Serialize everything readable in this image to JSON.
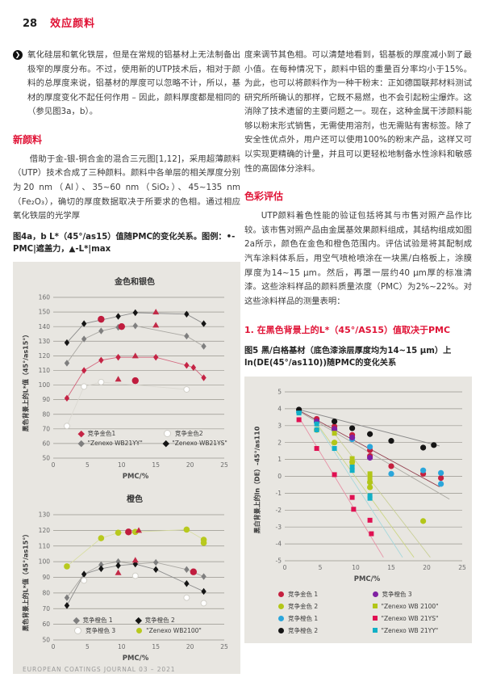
{
  "page": {
    "number": "28",
    "section_title": "效应颜料",
    "footer": "EUROPEAN COATINGS JOURNAL 03 – 2021"
  },
  "colors": {
    "accent_red": "#e01336",
    "chart_box_bg": "#e8e6e1",
    "gridline": "#98958e"
  },
  "left_column": {
    "intro_paragraph": "氧化硅层和氧化铁层，但是在常规的铝基材上无法制备出极窄的厚度分布。不过，使用新的UTP技术后，相对于颜料的总厚度来说，铝基材的厚度可以忽略不计，所以，基材的厚度变化不起任何作用 – 因此，颜料厚度都是相同的（参见图3a，b）。",
    "heading_new_pigments": "新颜料",
    "new_pigments_paragraph": "借助于金-银-铜合金的混合三元图[1,12]，采用超薄颜料（UTP）技术合成了三种颜料。颜料中各单层的相关厚度分别为20 nm（Al）、35~60 nm（SiO₂）、45~135 nm（Fe₂O₃），确切的厚度数据取决于所要求的色相。通过相应氧化铁层的光学厚",
    "figure4_caption": "图4a，b L*（45°/as15）值随PMC的变化关系。图例：•-PMC|遮盖力，▲-L*|max"
  },
  "right_column": {
    "continuation_paragraph": "度来调节其色相。可以清楚地看到，铝基板的厚度减小到了最小值。在每种情况下，颜料中铝的重量百分率均小于15%。为此，也可以将颜料作为一种干粉末：正如德国联邦材料测试研究所所确认的那样，它既不易燃，也不会引起粉尘爆炸。这消除了技术遗留的主要问题之一。现在，这种金属干涉颜料能够以粉末形式销售，无需使用溶剂，也无需贴有害标签。除了安全性优点外，用户还可以使用100%的粉末产品，这样又可以实现更精确的计量，并且可以更轻松地制备水性涂料和敏感性的高固体分涂料。",
    "heading_color_evaluation": "色彩评估",
    "evaluation_paragraph": "UTP颜料着色性能的验证包括将其与市售对照产品作比较。该市售对照产品由金属基效果颜料组成，其结构组成如图2a所示，颜色在金色和橙色范围内。评估试验是将其配制成汽车涂料体系后，用空气喷枪喷涂在一块黑/白格板上，涂膜厚度为14~15 μm。然后，再罩一层约40 μm厚的标准清漆。这些涂料样品的颜料质量浓度（PMC）为2%~22%。对这些涂料样品的测量表明：",
    "subheading_1": "1. 在黑色背景上的L*（45°/AS15）值取决于PMC",
    "figure5_caption": "图5 黑/白格基材（底色漆涂层厚度均为14~15 μm）上 ln(DE(45°/as110))随PMC的变化关系"
  },
  "chart_data": [
    {
      "type": "scatter",
      "title": "金色和银色",
      "xlabel": "PMC/%",
      "ylabel": "黑色背景上的L*值（45°/as15°）",
      "xlim": [
        0,
        25
      ],
      "ylim": [
        50,
        160
      ],
      "xticks": [
        0,
        5,
        10,
        15,
        20,
        25
      ],
      "yticks": [
        50,
        60,
        70,
        80,
        90,
        100,
        110,
        120,
        130,
        140,
        150,
        160
      ],
      "grid": "horizontal",
      "legend_position": "inside-bottom",
      "series": [
        {
          "name": "竞争金色1",
          "marker": "diamond",
          "color": "#c52445",
          "line": true,
          "line_color": "#d4677e",
          "size": 3.2,
          "points": [
            [
              2,
              91
            ],
            [
              4.5,
              110
            ],
            [
              7,
              117
            ],
            [
              9.5,
              119
            ],
            [
              15,
              119
            ],
            [
              19.5,
              113.5
            ],
            [
              20.5,
              112
            ],
            [
              22,
              105
            ]
          ]
        },
        {
          "name": "竞争金色2",
          "marker": "circle",
          "color": "#ffffff",
          "line": true,
          "line_color": "#dbd9d2",
          "size": 3.5,
          "points": [
            [
              2,
              72
            ],
            [
              4.5,
              99
            ],
            [
              7,
              102
            ],
            [
              19.5,
              97
            ]
          ]
        },
        {
          "name": "\"Zenexo WB21YY\"",
          "marker": "diamond",
          "color": "#7f7f7f",
          "line": true,
          "line_color": "#aaa8a3",
          "size": 3.2,
          "points": [
            [
              2,
              115
            ],
            [
              4.5,
              131.5
            ],
            [
              7,
              137
            ],
            [
              9.5,
              139.5
            ],
            [
              12,
              140.5
            ],
            [
              19.5,
              133.5
            ],
            [
              22,
              126.5
            ]
          ]
        },
        {
          "name": "\"Zenexo WB21YS\"",
          "marker": "diamond",
          "color": "#151515",
          "line": true,
          "line_color": "#8c8c8c",
          "size": 3.2,
          "points": [
            [
              2,
              129
            ],
            [
              4.5,
              142
            ],
            [
              9.5,
              147
            ],
            [
              12,
              149.5
            ],
            [
              19.5,
              148.5
            ],
            [
              22,
              142
            ]
          ]
        },
        {
          "name": "PMC|遮盖力",
          "marker": "circle",
          "color": "#c01c3e",
          "size": 4.2,
          "points": [
            [
              7,
              145
            ],
            [
              10,
              140
            ],
            [
              12,
              103
            ]
          ]
        },
        {
          "name": "L*|max",
          "marker": "triangle",
          "color": "#c22a47",
          "size": 4,
          "points": [
            [
              9.5,
              104
            ],
            [
              12,
              120
            ],
            [
              15,
              150
            ],
            [
              15,
              141
            ]
          ]
        }
      ],
      "legend": [
        {
          "label": "竞争金色1",
          "marker": "diamond",
          "color": "#c52445"
        },
        {
          "label": "竞争金色2",
          "marker": "circle",
          "color": "#ffffff"
        },
        {
          "label": "\"Zenexo WB21YY\"",
          "marker": "diamond",
          "color": "#7f7f7f"
        },
        {
          "label": "\"Zenexo WB21YS\"",
          "marker": "diamond",
          "color": "#151515"
        }
      ]
    },
    {
      "type": "scatter",
      "title": "橙色",
      "xlabel": "PMC/%",
      "ylabel": "黑色背景上的L*值（45°/as15°）",
      "xlim": [
        0,
        25
      ],
      "ylim": [
        50,
        130
      ],
      "xticks": [
        0,
        5,
        10,
        15,
        20,
        25
      ],
      "yticks": [
        50,
        60,
        70,
        80,
        90,
        100,
        110,
        120,
        130
      ],
      "grid": "horizontal",
      "legend_position": "inside-bottom",
      "series": [
        {
          "name": "竞争橙色 1",
          "marker": "diamond",
          "color": "#7f7f7f",
          "line": true,
          "line_color": "#aaa8a3",
          "size": 3.2,
          "points": [
            [
              2,
              77
            ],
            [
              4.5,
              92
            ],
            [
              7,
              98
            ],
            [
              9.5,
              100
            ],
            [
              12,
              98.5
            ],
            [
              15,
              99.5
            ],
            [
              19.5,
              95
            ],
            [
              22,
              90.5
            ]
          ]
        },
        {
          "name": "竞争橙色 2",
          "marker": "diamond",
          "color": "#151515",
          "line": true,
          "line_color": "#8c8c8c",
          "size": 3.2,
          "points": [
            [
              2,
              72
            ],
            [
              4.5,
              92
            ],
            [
              7,
              95.5
            ],
            [
              9.5,
              97.5
            ],
            [
              12,
              98.5
            ],
            [
              15,
              95
            ],
            [
              19.5,
              86
            ],
            [
              22,
              81
            ]
          ]
        },
        {
          "name": "竞争橙色 3",
          "marker": "circle",
          "color": "#ffffff",
          "size": 3.5,
          "points": [
            [
              4.5,
              88
            ],
            [
              12,
              91
            ],
            [
              19.5,
              77
            ],
            [
              22,
              73.5
            ]
          ]
        },
        {
          "name": "\"Zenexo WB2100\"",
          "marker": "circle",
          "color": "#b8c91e",
          "line": true,
          "line_color": "#d8dda2",
          "size": 3.8,
          "points": [
            [
              2,
              97
            ],
            [
              7,
              115
            ],
            [
              9.5,
              118.5
            ],
            [
              12,
              119
            ],
            [
              19.5,
              120.5
            ],
            [
              22,
              114
            ],
            [
              22,
              112
            ]
          ]
        },
        {
          "name": "PMC|遮盖力",
          "marker": "circle",
          "color": "#c01c3e",
          "size": 4.2,
          "points": [
            [
              11,
              119
            ],
            [
              20.5,
              93.5
            ]
          ]
        },
        {
          "name": "L*|max",
          "marker": "triangle",
          "color": "#c22a47",
          "size": 4,
          "points": [
            [
              9.5,
              93
            ],
            [
              12,
              101
            ],
            [
              12.5,
              120
            ]
          ]
        }
      ],
      "legend": [
        {
          "label": "竞争橙色 1",
          "marker": "diamond",
          "color": "#7f7f7f"
        },
        {
          "label": "竞争橙色 2",
          "marker": "diamond",
          "color": "#151515"
        },
        {
          "label": "竞争橙色 3",
          "marker": "circle",
          "color": "#ffffff"
        },
        {
          "label": "\"Zenexo WB2100\"",
          "marker": "circle",
          "color": "#b8c91e"
        }
      ]
    },
    {
      "type": "scatter",
      "title": "",
      "xlabel": "PMC/%",
      "ylabel": "黑白背景上的ln（DE）-45°/as110",
      "xlim": [
        0,
        25
      ],
      "ylim": [
        -5,
        5
      ],
      "xticks": [
        0,
        5,
        10,
        15,
        20,
        25
      ],
      "yticks": [
        -5,
        -4,
        -3,
        -2,
        -1,
        0,
        1,
        2,
        3,
        4,
        5
      ],
      "grid": "horizontal",
      "legend_position": "below",
      "series": [
        {
          "name": "竞争金色 1",
          "marker": "circle",
          "color": "#c5203f",
          "size": 3.6,
          "trend": [
            2,
            3.9,
            21.8,
            -0.62
          ],
          "trend_color": "#93404f",
          "points": [
            [
              4.5,
              3.4
            ],
            [
              7,
              2.95
            ],
            [
              9.5,
              2.45
            ],
            [
              12,
              1.55
            ],
            [
              12,
              1.2
            ],
            [
              15,
              0.6
            ],
            [
              19.5,
              0.15
            ],
            [
              22,
              -0.1
            ]
          ]
        },
        {
          "name": "竞争金色 2",
          "marker": "circle",
          "color": "#b3c618",
          "size": 3.6,
          "trend": [
            4.2,
            3.3,
            18.2,
            -4.8
          ],
          "trend_color": "#ccd685",
          "points": [
            [
              4.5,
              2.75
            ],
            [
              7,
              2.0
            ],
            [
              9.5,
              0.85
            ],
            [
              12,
              -0.35
            ],
            [
              12,
              -0.65
            ],
            [
              19.5,
              -2.65
            ]
          ]
        },
        {
          "name": "竞争橙色 1",
          "marker": "circle",
          "color": "#2ba6db",
          "size": 3.6,
          "trend": [
            2,
            3.85,
            23.2,
            -1.35
          ],
          "trend_color": "#a9a7a0",
          "points": [
            [
              2,
              3.8
            ],
            [
              4.5,
              3.2
            ],
            [
              7,
              2.75
            ],
            [
              9.5,
              2.2
            ],
            [
              12,
              1.75
            ],
            [
              15,
              0.15
            ],
            [
              19.5,
              0.35
            ],
            [
              22,
              0.2
            ],
            [
              22,
              -0.45
            ]
          ]
        },
        {
          "name": "竞争橙色 2",
          "marker": "circle",
          "color": "#151515",
          "size": 3.6,
          "trend": [
            2,
            3.95,
            21.8,
            1.8
          ],
          "trend_color": "#8a8a8a",
          "points": [
            [
              2,
              3.95
            ],
            [
              7,
              3.25
            ],
            [
              9.5,
              2.85
            ],
            [
              12,
              2.5
            ],
            [
              15,
              2.1
            ],
            [
              19.5,
              1.7
            ],
            [
              21,
              1.85
            ]
          ]
        },
        {
          "name": "竞争橙色 3",
          "marker": "circle",
          "color": "#8021a2",
          "size": 3.6,
          "points": [
            [
              4.5,
              3.25
            ],
            [
              7,
              2.8
            ],
            [
              9.5,
              2.3
            ],
            [
              12,
              1.1
            ]
          ]
        },
        {
          "name": "\"Zenexo WB 2100\"",
          "marker": "square",
          "color": "#b3c618",
          "size": 3,
          "trend": [
            6.5,
            2.8,
            20.5,
            -4.8
          ],
          "trend_color": "#c9cf96",
          "points": [
            [
              7,
              2.55
            ],
            [
              9.5,
              1.05
            ],
            [
              9.5,
              0.75
            ],
            [
              12,
              0.15
            ],
            [
              12,
              -0.1
            ]
          ]
        },
        {
          "name": "\"Zenexo WB 21YS\"",
          "marker": "square",
          "color": "#e01052",
          "size": 3,
          "trend": [
            2,
            3.5,
            13.9,
            -4.8
          ],
          "trend_color": "#e791a5",
          "points": [
            [
              2,
              3.35
            ],
            [
              4.5,
              1.65
            ],
            [
              7,
              0.1
            ],
            [
              9.5,
              -1.25
            ],
            [
              9.7,
              -1.95
            ],
            [
              12,
              -2.6
            ],
            [
              12.2,
              -3.4
            ]
          ]
        },
        {
          "name": "\"Zenexo WB 21YY\"",
          "marker": "square",
          "color": "#12b0c6",
          "size": 3,
          "trend": [
            4,
            3.4,
            16.6,
            -4.8
          ],
          "trend_color": "#a5d8dc",
          "points": [
            [
              2,
              3.75
            ],
            [
              4.5,
              3.1
            ],
            [
              4.5,
              2.75
            ],
            [
              7,
              1.65
            ],
            [
              9.5,
              0.55
            ],
            [
              9.5,
              0.35
            ],
            [
              12,
              -1.15
            ],
            [
              12,
              -1.3
            ]
          ]
        }
      ],
      "legend": [
        {
          "label": "竞争金色 1",
          "marker": "circle",
          "color": "#c5203f"
        },
        {
          "label": "竞争金色 2",
          "marker": "circle",
          "color": "#b3c618"
        },
        {
          "label": "竞争橙色 1",
          "marker": "circle",
          "color": "#2ba6db"
        },
        {
          "label": "竞争橙色 2",
          "marker": "circle",
          "color": "#151515"
        },
        {
          "label": "竞争橙色 3",
          "marker": "circle",
          "color": "#8021a2"
        },
        {
          "label": "\"Zenexo WB 2100\"",
          "marker": "square",
          "color": "#b3c618"
        },
        {
          "label": "\"Zenexo WB 21YS\"",
          "marker": "square",
          "color": "#e01052"
        },
        {
          "label": "\"Zenexo WB 21YY\"",
          "marker": "square",
          "color": "#12b0c6"
        }
      ]
    }
  ]
}
